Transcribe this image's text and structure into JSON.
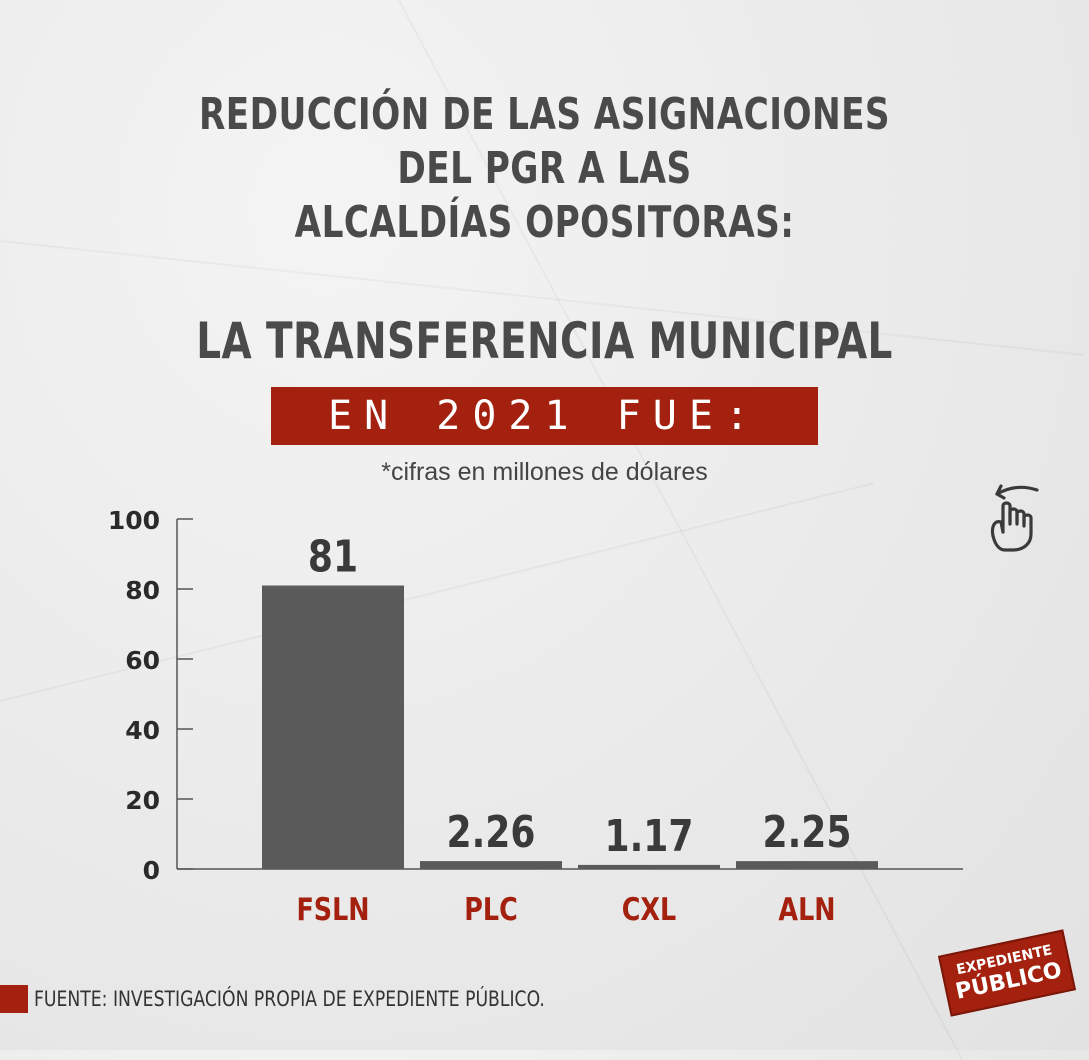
{
  "header": {
    "title_line1": "REDUCCIÓN DE LAS ASIGNACIONES DEL PGR A LAS",
    "title_line2": "ALCALDÍAS OPOSITORAS:",
    "subtitle": "LA TRANSFERENCIA MUNICIPAL",
    "banner": "EN 2021 FUE:",
    "note": "*cifras en millones de dólares"
  },
  "footer": {
    "source": "FUENTE: INVESTIGACIÓN PROPIA DE EXPEDIENTE PÚBLICO.",
    "logo_line1": "EXPEDIENTE",
    "logo_line2": "PÚBLICO"
  },
  "icons": {
    "hand": "hand-pointer-icon"
  },
  "colors": {
    "bar": "#5a5a5a",
    "accent": "#a3210e",
    "text": "#333333"
  },
  "chart_data": {
    "type": "bar",
    "categories": [
      "FSLN",
      "PLC",
      "CXL",
      "ALN"
    ],
    "values": [
      81,
      2.26,
      1.17,
      2.25
    ],
    "value_labels": [
      "81",
      "2.26",
      "1.17",
      "2.25"
    ],
    "yticks": [
      0,
      20,
      40,
      60,
      80,
      100
    ],
    "ylim": [
      0,
      100
    ],
    "grid": false,
    "legend": "none"
  }
}
